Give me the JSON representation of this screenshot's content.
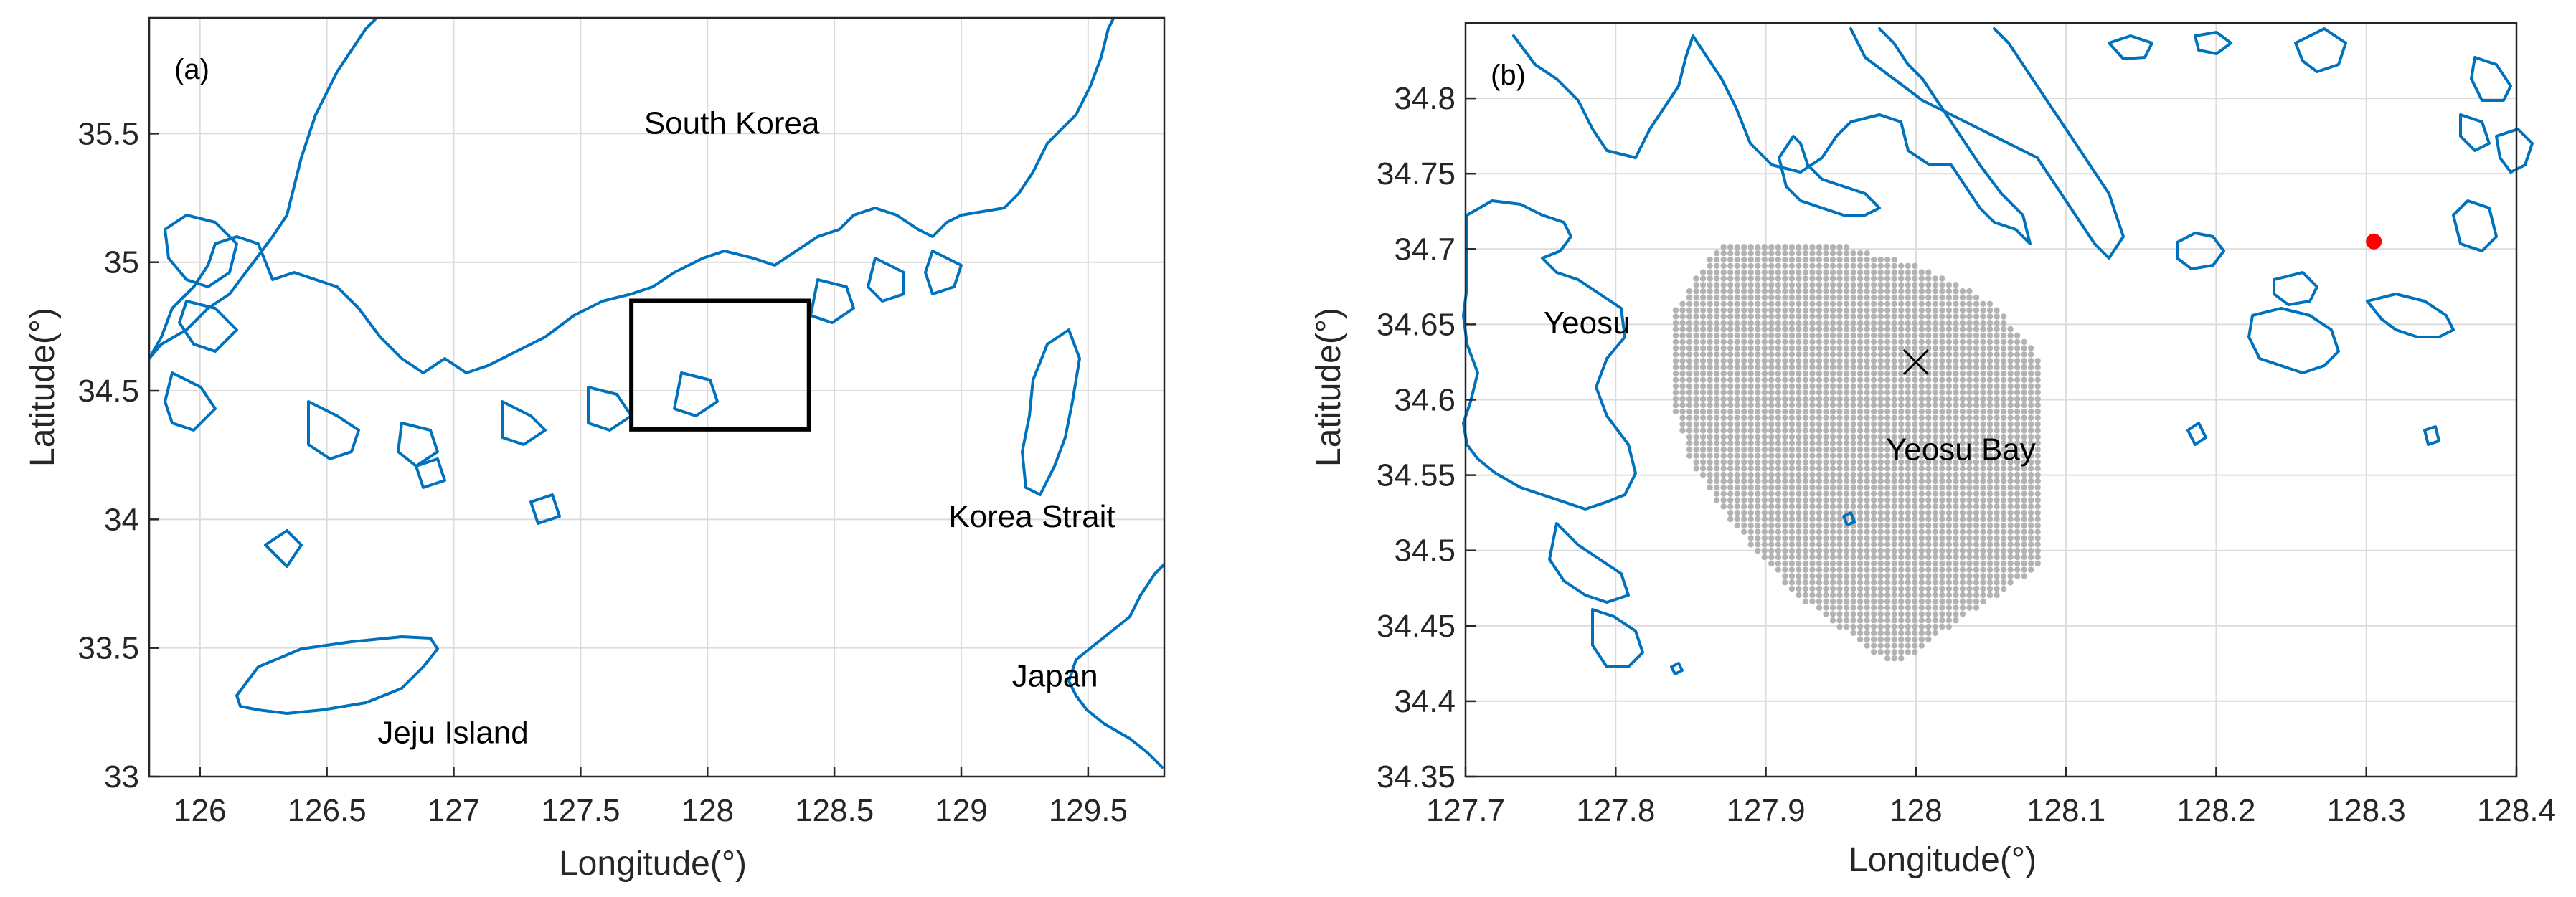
{
  "panels": [
    {
      "id": "a",
      "label": "(a)",
      "xlabel": "Longitude(°)",
      "ylabel": "Latitude(°)",
      "xlim": [
        125.8,
        129.8
      ],
      "ylim": [
        33.0,
        35.95
      ],
      "xticks": [
        126,
        126.5,
        127,
        127.5,
        128,
        128.5,
        129,
        129.5
      ],
      "xtick_labels": [
        "126",
        "126.5",
        "127",
        "127.5",
        "128",
        "128.5",
        "129",
        "129.5"
      ],
      "yticks": [
        33,
        33.5,
        34,
        34.5,
        35,
        35.5
      ],
      "ytick_labels": [
        "33",
        "33.5",
        "34",
        "34.5",
        "35",
        "35.5"
      ],
      "annotations": [
        {
          "text": "South Korea",
          "lon": 127.75,
          "lat": 35.5
        },
        {
          "text": "Korea Strait",
          "lon": 128.95,
          "lat": 33.97
        },
        {
          "text": "Japan",
          "lon": 129.2,
          "lat": 33.35
        },
        {
          "text": "Jeju Island",
          "lon": 126.7,
          "lat": 33.13
        }
      ],
      "inset_box": {
        "lon": [
          127.7,
          128.4
        ],
        "lat": [
          34.35,
          34.85
        ]
      }
    },
    {
      "id": "b",
      "label": "(b)",
      "xlabel": "Longitude(°)",
      "ylabel": "Latitude(°)",
      "xlim": [
        127.7,
        128.4
      ],
      "ylim": [
        34.35,
        34.85
      ],
      "xticks": [
        127.7,
        127.8,
        127.9,
        128,
        128.1,
        128.2,
        128.3,
        128.4
      ],
      "xtick_labels": [
        "127.7",
        "127.8",
        "127.9",
        "128",
        "128.1",
        "128.2",
        "128.3",
        "128.4"
      ],
      "yticks": [
        34.35,
        34.4,
        34.45,
        34.5,
        34.55,
        34.6,
        34.65,
        34.7,
        34.75,
        34.8
      ],
      "ytick_labels": [
        "34.35",
        "34.4",
        "34.45",
        "34.5",
        "34.55",
        "34.6",
        "34.65",
        "34.7",
        "34.75",
        "34.8"
      ],
      "annotations": [
        {
          "text": "Yeosu",
          "lon": 127.752,
          "lat": 34.644
        },
        {
          "text": "Yeosu Bay",
          "lon": 127.98,
          "lat": 34.56
        }
      ],
      "cross_marker": {
        "lon": 128.0,
        "lat": 34.625
      },
      "red_point": {
        "lon": 128.305,
        "lat": 34.705,
        "color": "#ff0000"
      }
    }
  ],
  "colors": {
    "coastline": "#0072bd",
    "grid_points": "#b3b3b3",
    "marker": "#ff0000"
  }
}
